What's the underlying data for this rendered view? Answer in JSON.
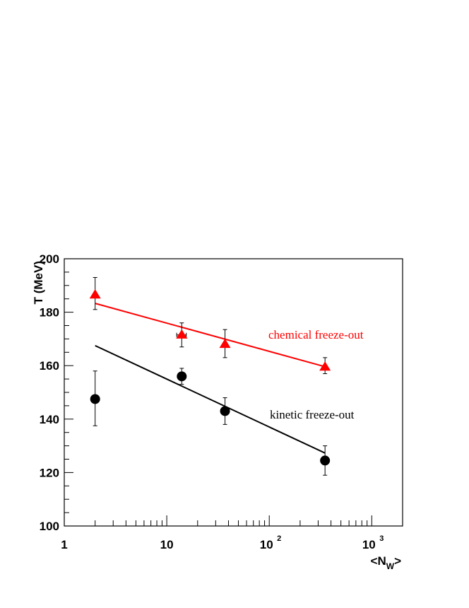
{
  "chart_data": {
    "type": "scatter",
    "title": "",
    "xlabel_base": "<N",
    "xlabel_sub": "W",
    "xlabel_end": ">",
    "ylabel": "T (MeV)",
    "x_scale": "log",
    "xlim": [
      1,
      2000
    ],
    "ylim": [
      100,
      200
    ],
    "y_ticks": [
      "100",
      "120",
      "140",
      "160",
      "180",
      "200"
    ],
    "x_ticks": [
      {
        "base": "1",
        "exp": ""
      },
      {
        "base": "10",
        "exp": ""
      },
      {
        "base": "10",
        "exp": "2"
      },
      {
        "base": "10",
        "exp": "3"
      }
    ],
    "grid": false,
    "series": [
      {
        "name": "chemical freeze-out",
        "marker": "triangle",
        "color": "#ff0000",
        "points": [
          {
            "x": 2,
            "y": 186.5,
            "err_lo": 5.5,
            "err_hi": 6.5,
            "xerr": 0
          },
          {
            "x": 14,
            "y": 171.5,
            "err_lo": 4.5,
            "err_hi": 4.5,
            "xerr": 1.5
          },
          {
            "x": 37,
            "y": 168,
            "err_lo": 5,
            "err_hi": 5.5,
            "xerr": 0
          },
          {
            "x": 350,
            "y": 159.5,
            "err_lo": 2.5,
            "err_hi": 3.5,
            "xerr": 0
          }
        ],
        "fit": {
          "x": [
            2,
            350
          ],
          "y": [
            183.3,
            159.6
          ]
        }
      },
      {
        "name": "kinetic freeze-out",
        "marker": "circle",
        "color": "#000000",
        "points": [
          {
            "x": 2,
            "y": 147.5,
            "err_lo": 10,
            "err_hi": 10.5,
            "xerr": 0
          },
          {
            "x": 14,
            "y": 156,
            "err_lo": 3,
            "err_hi": 3,
            "xerr": 0
          },
          {
            "x": 37,
            "y": 143,
            "err_lo": 5,
            "err_hi": 5,
            "xerr": 0
          },
          {
            "x": 350,
            "y": 124.5,
            "err_lo": 5.5,
            "err_hi": 5.5,
            "xerr": 0
          }
        ],
        "fit": {
          "x": [
            2,
            350
          ],
          "y": [
            167.5,
            127.3
          ]
        }
      }
    ],
    "annotations": [
      {
        "text": "chemical freeze-out",
        "color": "#ff0000",
        "near": "right of red line"
      },
      {
        "text": "kinetic freeze-out",
        "color": "#000000",
        "near": "right of black line"
      }
    ]
  }
}
